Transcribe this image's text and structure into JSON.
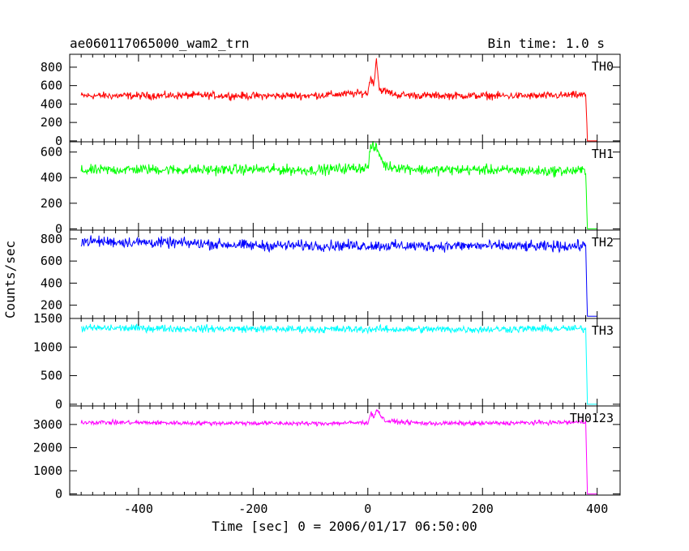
{
  "chart_data": {
    "type": "line",
    "title": "ae060117065000_wam2_trn",
    "bin_time": "Bin time: 1.0 s",
    "xlabel": "Time [sec] 0 = 2006/01/17 06:50:00",
    "ylabel": "Counts/sec",
    "xlim": [
      -520,
      440
    ],
    "x_ticks": [
      -400,
      -200,
      0,
      200,
      400
    ],
    "grid": false,
    "panels": [
      {
        "name": "TH0",
        "color": "#ff0000",
        "ylim": [
          -10,
          940
        ],
        "y_ticks": [
          0,
          200,
          400,
          600,
          800
        ],
        "baseline": 490,
        "noise": 25,
        "dropout_start": 383,
        "x": [
          -500,
          -400,
          -300,
          -200,
          -100,
          0,
          5,
          10,
          15,
          20,
          50,
          100,
          200,
          300,
          380,
          383,
          400
        ],
        "values": [
          490,
          490,
          495,
          488,
          492,
          520,
          700,
          600,
          900,
          560,
          500,
          492,
          490,
          488,
          500,
          0,
          0
        ]
      },
      {
        "name": "TH1",
        "color": "#00ff00",
        "ylim": [
          -10,
          680
        ],
        "y_ticks": [
          0,
          200,
          400,
          600
        ],
        "baseline": 460,
        "noise": 25,
        "dropout_start": 383,
        "x": [
          -500,
          -400,
          -300,
          -200,
          -100,
          0,
          5,
          15,
          30,
          100,
          200,
          300,
          380,
          383,
          400
        ],
        "values": [
          455,
          465,
          460,
          465,
          458,
          480,
          640,
          630,
          490,
          460,
          462,
          450,
          455,
          0,
          0
        ]
      },
      {
        "name": "TH2",
        "color": "#0000ff",
        "ylim": [
          80,
          880
        ],
        "y_ticks": [
          200,
          400,
          600,
          800
        ],
        "baseline": 740,
        "noise": 30,
        "dropout_start": 383,
        "x": [
          -500,
          -400,
          -300,
          -200,
          -100,
          0,
          100,
          200,
          300,
          380,
          383,
          400
        ],
        "values": [
          780,
          770,
          760,
          740,
          740,
          740,
          735,
          738,
          730,
          740,
          100,
          100
        ]
      },
      {
        "name": "TH3",
        "color": "#00ffff",
        "ylim": [
          -30,
          1500
        ],
        "y_ticks": [
          0,
          500,
          1000,
          1500
        ],
        "baseline": 1320,
        "noise": 40,
        "dropout_start": 383,
        "x": [
          -500,
          -400,
          -300,
          -200,
          -100,
          0,
          100,
          200,
          300,
          380,
          383,
          400
        ],
        "values": [
          1330,
          1330,
          1320,
          1320,
          1310,
          1310,
          1310,
          1310,
          1320,
          1320,
          0,
          0
        ]
      },
      {
        "name": "TH0123",
        "color": "#ff00ff",
        "ylim": [
          -50,
          3800
        ],
        "y_ticks": [
          0,
          1000,
          2000,
          3000
        ],
        "baseline": 3080,
        "noise": 60,
        "dropout_start": 383,
        "x": [
          -500,
          -400,
          -300,
          -200,
          -100,
          0,
          5,
          10,
          15,
          30,
          100,
          200,
          300,
          380,
          383,
          400
        ],
        "values": [
          3100,
          3080,
          3060,
          3060,
          3040,
          3080,
          3500,
          3300,
          3650,
          3150,
          3050,
          3050,
          3080,
          3100,
          0,
          0
        ]
      }
    ]
  }
}
